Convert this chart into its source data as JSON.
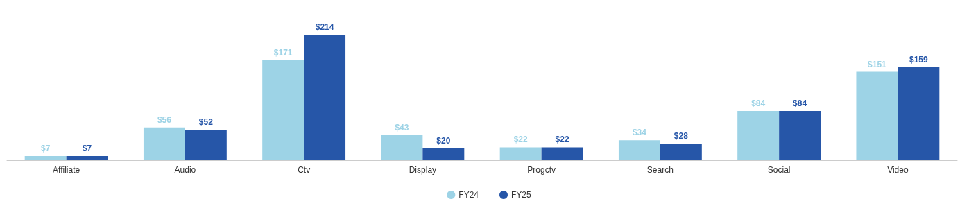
{
  "chart_data": {
    "type": "bar",
    "categories": [
      "Affiliate",
      "Audio",
      "Ctv",
      "Display",
      "Progctv",
      "Search",
      "Social",
      "Video"
    ],
    "series": [
      {
        "name": "FY24",
        "color": "#9dd3e6",
        "values": [
          7,
          56,
          171,
          43,
          22,
          34,
          84,
          151
        ],
        "value_labels": [
          "$7",
          "$56",
          "$171",
          "$43",
          "$22",
          "$34",
          "$84",
          "$151"
        ]
      },
      {
        "name": "FY25",
        "color": "#2656a8",
        "values": [
          7,
          52,
          214,
          20,
          22,
          28,
          84,
          159
        ],
        "value_labels": [
          "$7",
          "$52",
          "$214",
          "$20",
          "$22",
          "$28",
          "$84",
          "$159"
        ]
      }
    ],
    "legend": "bottom",
    "grid": false,
    "tick_labels": "x"
  }
}
